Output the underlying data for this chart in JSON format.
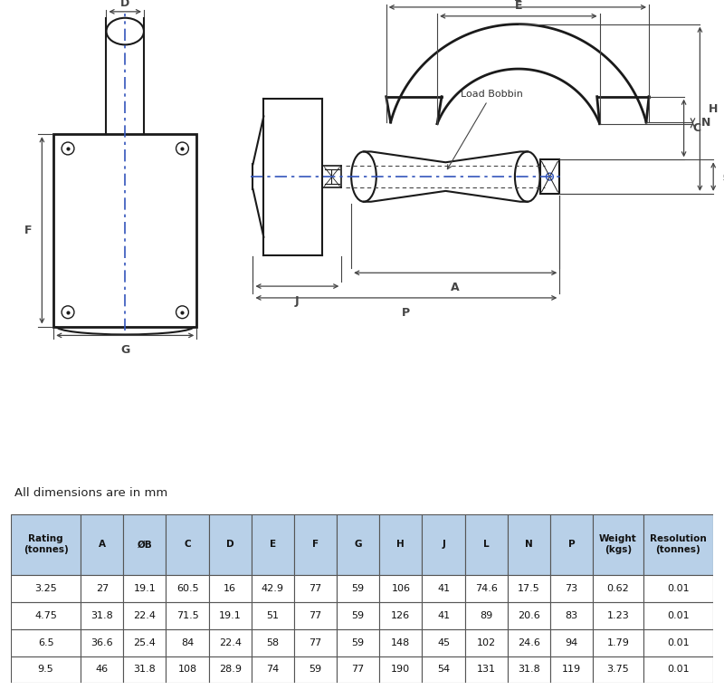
{
  "background_color": "#ffffff",
  "line_color": "#1a1a1a",
  "dim_line_color": "#444444",
  "blue_dash_color": "#3355bb",
  "table_header_bg": "#b8d0e8",
  "table_border_color": "#555555",
  "note_text": "All dimensions are in mm",
  "table_headers": [
    "Rating\n(tonnes)",
    "A",
    "ØB",
    "C",
    "D",
    "E",
    "F",
    "G",
    "H",
    "J",
    "L",
    "N",
    "P",
    "Weight\n(kgs)",
    "Resolution\n(tonnes)"
  ],
  "table_data": [
    [
      "3.25",
      "27",
      "19.1",
      "60.5",
      "16",
      "42.9",
      "77",
      "59",
      "106",
      "41",
      "74.6",
      "17.5",
      "73",
      "0.62",
      "0.01"
    ],
    [
      "4.75",
      "31.8",
      "22.4",
      "71.5",
      "19.1",
      "51",
      "77",
      "59",
      "126",
      "41",
      "89",
      "20.6",
      "83",
      "1.23",
      "0.01"
    ],
    [
      "6.5",
      "36.6",
      "25.4",
      "84",
      "22.4",
      "58",
      "77",
      "59",
      "148",
      "45",
      "102",
      "24.6",
      "94",
      "1.79",
      "0.01"
    ],
    [
      "9.5",
      "46",
      "31.8",
      "108",
      "28.9",
      "74",
      "59",
      "77",
      "190",
      "54",
      "131",
      "31.8",
      "119",
      "3.75",
      "0.01"
    ]
  ]
}
